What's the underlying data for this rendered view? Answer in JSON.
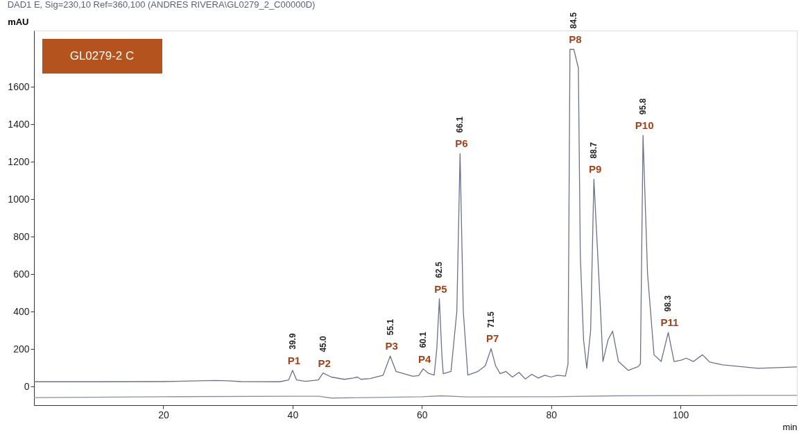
{
  "chart_data": {
    "type": "line",
    "title": "DAD1 E, Sig=230,10 Ref=360,100 (ANDRES RIVERA\\GL0279_2_C00000D)",
    "xlabel": "min",
    "ylabel": "mAU",
    "xlim": [
      0,
      118
    ],
    "ylim": [
      -100,
      1900
    ],
    "xticks": [
      20,
      40,
      60,
      80,
      100
    ],
    "yticks": [
      0,
      200,
      400,
      600,
      800,
      1000,
      1200,
      1400,
      1600
    ],
    "grid": false,
    "legend": false,
    "marker": "none",
    "line_style": "solid",
    "series": [
      {
        "color": "#6b7089",
        "x": [
          0,
          10,
          20,
          28,
          30,
          32,
          38,
          39.4,
          40,
          40.6,
          42,
          44,
          44.7,
          46,
          48,
          49.4,
          50,
          50.6,
          52,
          54,
          55.1,
          56,
          58.6,
          59.5,
          60.2,
          61,
          61.9,
          62.3,
          62.7,
          63.1,
          63.3,
          64.5,
          65.4,
          65.9,
          66.4,
          67.1,
          68.6,
          69.8,
          70.7,
          71.4,
          72.1,
          73,
          74,
          75,
          76,
          77,
          78,
          79,
          80,
          81,
          82.2,
          82.6,
          82.9,
          83.5,
          84.2,
          84.5,
          85,
          85.5,
          86.1,
          86.6,
          87.5,
          88,
          88.8,
          89.5,
          90.4,
          91.9,
          93.4,
          93.8,
          94.2,
          94.9,
          95.9,
          97,
          98.1,
          99,
          100.1,
          100.9,
          102,
          103.4,
          104.5,
          106.5,
          112,
          118
        ],
        "values": [
          25,
          25,
          26,
          32,
          30,
          26,
          25,
          35,
          86,
          35,
          27,
          35,
          72,
          50,
          38,
          45,
          50,
          38,
          42,
          60,
          162,
          80,
          54,
          58,
          94,
          70,
          61,
          200,
          468,
          160,
          68,
          80,
          400,
          1243,
          400,
          61,
          79,
          110,
          202,
          110,
          68,
          80,
          50,
          75,
          40,
          65,
          45,
          60,
          50,
          60,
          55,
          120,
          1799,
          1799,
          1700,
          700,
          250,
          97,
          300,
          1106,
          494,
          133,
          250,
          295,
          133,
          86,
          105,
          120,
          1340,
          602,
          169,
          133,
          288,
          133,
          140,
          151,
          133,
          169,
          130,
          115,
          97,
          104
        ]
      },
      {
        "color": "#8a8fa3",
        "x": [
          0,
          20,
          40,
          44,
          46,
          60,
          63,
          67,
          80,
          90,
          110,
          118
        ],
        "values": [
          -60,
          -55,
          -52,
          -52,
          -62,
          -55,
          -50,
          -56,
          -55,
          -50,
          -48,
          -48
        ]
      }
    ],
    "annotations": [
      "GL0279-2 C",
      {
        "text": "P1",
        "x": 40,
        "y": 86
      },
      {
        "text": "39.9",
        "x": 40,
        "y": 86
      },
      {
        "text": "P2",
        "x": 44.7,
        "y": 72
      },
      {
        "text": "45.0",
        "x": 44.7,
        "y": 72
      },
      {
        "text": "P3",
        "x": 55.1,
        "y": 162
      },
      {
        "text": "55.1",
        "x": 55.1,
        "y": 162
      },
      {
        "text": "P4",
        "x": 60.2,
        "y": 94
      },
      {
        "text": "60.1",
        "x": 60.2,
        "y": 94
      },
      {
        "text": "P5",
        "x": 62.7,
        "y": 468
      },
      {
        "text": "62.5",
        "x": 62.7,
        "y": 468
      },
      {
        "text": "P6",
        "x": 65.9,
        "y": 1243
      },
      {
        "text": "66.1",
        "x": 65.9,
        "y": 1243
      },
      {
        "text": "P7",
        "x": 70.7,
        "y": 202
      },
      {
        "text": "71.5",
        "x": 70.7,
        "y": 202
      },
      {
        "text": "P8",
        "x": 83.5,
        "y": 1799
      },
      {
        "text": "84.5",
        "x": 83.5,
        "y": 1799
      },
      {
        "text": "P9",
        "x": 86.6,
        "y": 1106
      },
      {
        "text": "88.7",
        "x": 86.6,
        "y": 1106
      },
      {
        "text": "P10",
        "x": 94.2,
        "y": 1340
      },
      {
        "text": "95.8",
        "x": 94.2,
        "y": 1340
      },
      {
        "text": "P11",
        "x": 98.1,
        "y": 288
      },
      {
        "text": "98.3",
        "x": 98.1,
        "y": 288
      }
    ]
  }
}
